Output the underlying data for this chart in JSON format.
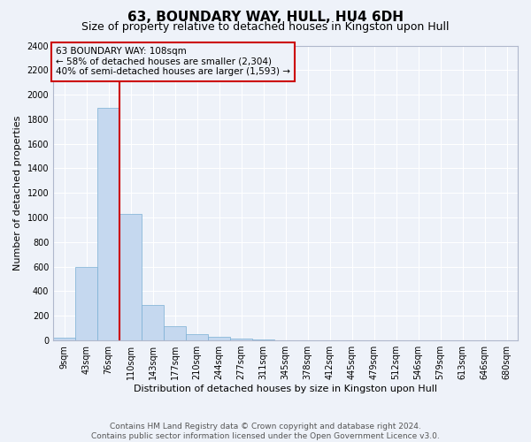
{
  "title": "63, BOUNDARY WAY, HULL, HU4 6DH",
  "subtitle": "Size of property relative to detached houses in Kingston upon Hull",
  "xlabel": "Distribution of detached houses by size in Kingston upon Hull",
  "ylabel": "Number of detached properties",
  "footer_line1": "Contains HM Land Registry data © Crown copyright and database right 2024.",
  "footer_line2": "Contains public sector information licensed under the Open Government Licence v3.0.",
  "categories": [
    "9sqm",
    "43sqm",
    "76sqm",
    "110sqm",
    "143sqm",
    "177sqm",
    "210sqm",
    "244sqm",
    "277sqm",
    "311sqm",
    "345sqm",
    "378sqm",
    "412sqm",
    "445sqm",
    "479sqm",
    "512sqm",
    "546sqm",
    "579sqm",
    "613sqm",
    "646sqm",
    "680sqm"
  ],
  "values": [
    20,
    600,
    1890,
    1030,
    285,
    115,
    48,
    30,
    18,
    5,
    2,
    1,
    0,
    0,
    0,
    0,
    0,
    0,
    0,
    0,
    0
  ],
  "ylim": [
    0,
    2400
  ],
  "yticks": [
    0,
    200,
    400,
    600,
    800,
    1000,
    1200,
    1400,
    1600,
    1800,
    2000,
    2200,
    2400
  ],
  "bar_color": "#c5d8ef",
  "bar_edgecolor": "#7aafd4",
  "property_line_x": 2.5,
  "annotation_title": "63 BOUNDARY WAY: 108sqm",
  "annotation_line1": "← 58% of detached houses are smaller (2,304)",
  "annotation_line2": "40% of semi-detached houses are larger (1,593) →",
  "annotation_box_color": "#cc0000",
  "background_color": "#eef2f9",
  "grid_color": "#ffffff",
  "title_fontsize": 11,
  "subtitle_fontsize": 9,
  "ylabel_fontsize": 8,
  "xlabel_fontsize": 8,
  "tick_fontsize": 7,
  "annotation_fontsize": 7.5,
  "footer_fontsize": 6.5
}
